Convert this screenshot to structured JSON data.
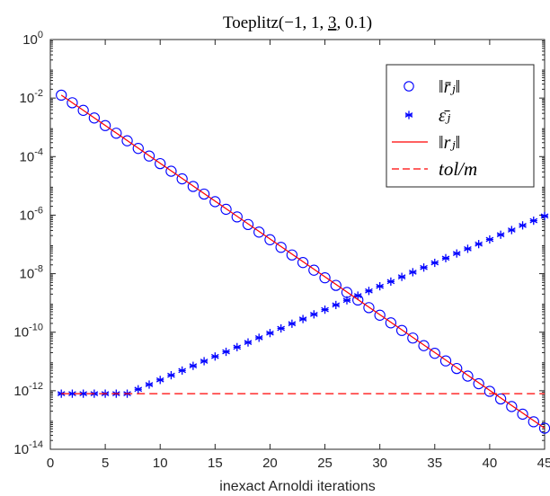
{
  "chart_data": {
    "type": "line",
    "title": "Toeplitz(−1, 1, 3, 0.1)",
    "title_parts": {
      "prefix": "Toeplitz(−1, 1, ",
      "underlined": "3",
      "suffix": ", 0.1)"
    },
    "xlabel": "inexact Arnoldi iterations",
    "ylabel": "",
    "xlim": [
      0,
      45
    ],
    "ylim": [
      1e-14,
      1
    ],
    "yscale": "log",
    "grid": false,
    "legend_position": "top-right",
    "xticks": [
      0,
      5,
      10,
      15,
      20,
      25,
      30,
      35,
      40,
      45
    ],
    "xtick_labels": [
      "0",
      "5",
      "10",
      "15",
      "20",
      "25",
      "30",
      "35",
      "40",
      "45"
    ],
    "yticks_exponents": [
      0,
      -2,
      -4,
      -6,
      -8,
      -10,
      -12,
      -14
    ],
    "ytick_labels": [
      "10^0",
      "10^-2",
      "10^-4",
      "10^-6",
      "10^-8",
      "10^-10",
      "10^-12",
      "10^-14"
    ],
    "x": [
      1,
      2,
      3,
      4,
      5,
      6,
      7,
      8,
      9,
      10,
      11,
      12,
      13,
      14,
      15,
      16,
      17,
      18,
      19,
      20,
      21,
      22,
      23,
      24,
      25,
      26,
      27,
      28,
      29,
      30,
      31,
      32,
      33,
      34,
      35,
      36,
      37,
      38,
      39,
      40,
      41,
      42,
      43,
      44,
      45
    ],
    "series": [
      {
        "name": "‖r̄ⱼ‖",
        "marker": "circle",
        "color": "#0000ff",
        "log10_values": [
          -1.9,
          -2.16,
          -2.42,
          -2.68,
          -2.94,
          -3.2,
          -3.46,
          -3.72,
          -3.98,
          -4.24,
          -4.5,
          -4.76,
          -5.02,
          -5.28,
          -5.54,
          -5.8,
          -6.06,
          -6.32,
          -6.58,
          -6.84,
          -7.1,
          -7.36,
          -7.62,
          -7.88,
          -8.14,
          -8.4,
          -8.64,
          -8.9,
          -9.16,
          -9.42,
          -9.68,
          -9.94,
          -10.2,
          -10.46,
          -10.72,
          -10.98,
          -11.24,
          -11.5,
          -11.76,
          -12.02,
          -12.28,
          -12.54,
          -12.8,
          -13.06,
          -13.28
        ]
      },
      {
        "name": "ε̄ⱼ",
        "marker": "asterisk",
        "color": "#0000ff",
        "log10_values": [
          -12.1,
          -12.1,
          -12.1,
          -12.1,
          -12.1,
          -12.1,
          -12.1,
          -11.95,
          -11.79,
          -11.63,
          -11.47,
          -11.31,
          -11.15,
          -10.99,
          -10.83,
          -10.67,
          -10.51,
          -10.35,
          -10.19,
          -10.03,
          -9.87,
          -9.71,
          -9.55,
          -9.39,
          -9.23,
          -9.07,
          -8.91,
          -8.75,
          -8.59,
          -8.43,
          -8.27,
          -8.11,
          -7.95,
          -7.79,
          -7.63,
          -7.47,
          -7.31,
          -7.15,
          -6.99,
          -6.83,
          -6.67,
          -6.51,
          -6.35,
          -6.19,
          -6.03
        ]
      },
      {
        "name": "‖rⱼ‖",
        "line": "solid",
        "color": "#ff0000",
        "x": [
          1,
          45
        ],
        "log10_values": [
          -1.9,
          -13.28
        ]
      },
      {
        "name": "tol/m",
        "line": "dashed",
        "color": "#ff0000",
        "x": [
          1,
          45
        ],
        "log10_values": [
          -12.1,
          -12.1
        ]
      }
    ]
  }
}
